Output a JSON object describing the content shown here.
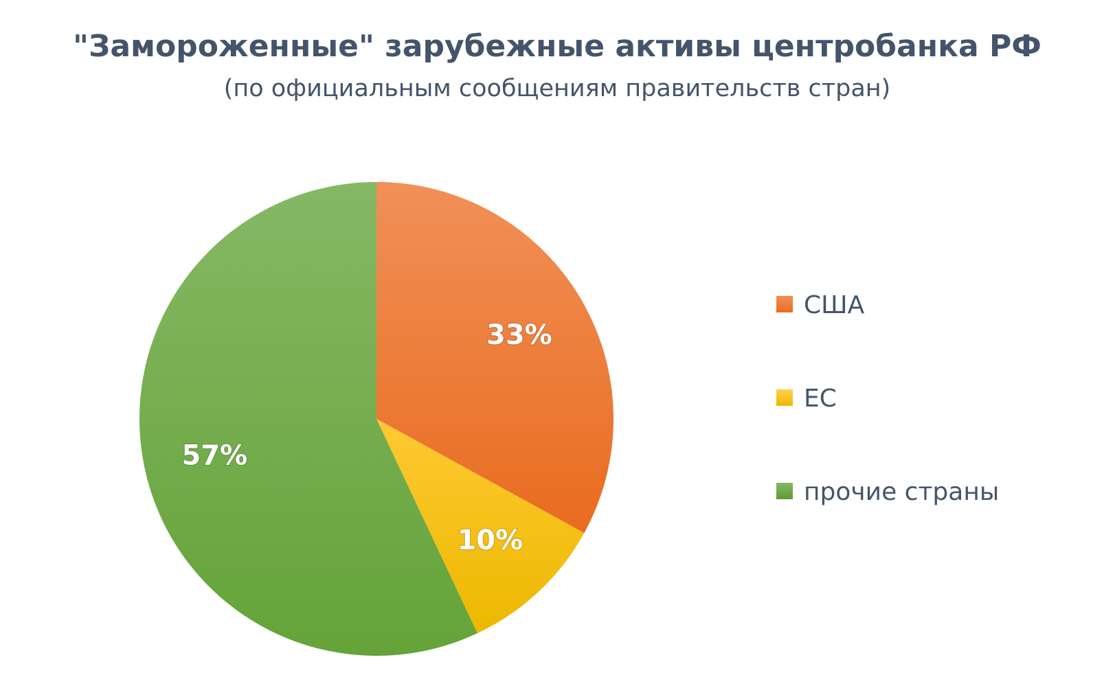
{
  "chart_data": {
    "type": "pie",
    "title": "\"Замороженные\" зарубежные активы центробанка РФ",
    "subtitle": "(по официальным сообщениям правительств стран)",
    "categories": [
      "США",
      "ЕС",
      "прочие страны"
    ],
    "values": [
      33,
      10,
      57
    ],
    "labels": [
      "33%",
      "10%",
      "57%"
    ],
    "colors": [
      "#ed7d31",
      "#ffc000",
      "#70ad47"
    ],
    "legend_position": "right"
  }
}
